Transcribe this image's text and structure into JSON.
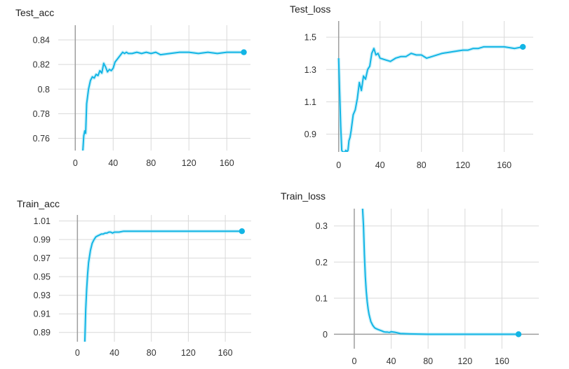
{
  "colors": {
    "line": "#12b5e5",
    "band": "#9be3f5",
    "grid": "#d9d9d9",
    "zero_axis": "#9e9e9e"
  },
  "chart_data": [
    {
      "type": "line",
      "title": "Test_acc",
      "xlim": [
        -18,
        185
      ],
      "ylim": [
        0.75,
        0.852
      ],
      "xticks": [
        0,
        40,
        80,
        120,
        160
      ],
      "yticks": [
        0.76,
        0.78,
        0.8,
        0.82,
        0.84
      ],
      "ytick_labels": [
        "0.76",
        "0.78",
        "0.8",
        "0.82",
        "0.84"
      ],
      "grid": true,
      "legend": "none",
      "series": [
        {
          "x": [
            8,
            9,
            10,
            11,
            12,
            14,
            16,
            18,
            20,
            22,
            24,
            26,
            28,
            30,
            32,
            34,
            36,
            38,
            40,
            42,
            44,
            46,
            48,
            50,
            52,
            54,
            56,
            60,
            65,
            70,
            75,
            80,
            85,
            90,
            100,
            110,
            120,
            130,
            140,
            150,
            160,
            170,
            178
          ],
          "y": [
            0.75,
            0.762,
            0.766,
            0.764,
            0.788,
            0.8,
            0.807,
            0.81,
            0.809,
            0.812,
            0.811,
            0.815,
            0.813,
            0.821,
            0.818,
            0.814,
            0.816,
            0.815,
            0.817,
            0.822,
            0.824,
            0.826,
            0.828,
            0.83,
            0.829,
            0.83,
            0.829,
            0.829,
            0.83,
            0.829,
            0.83,
            0.829,
            0.83,
            0.828,
            0.829,
            0.83,
            0.83,
            0.829,
            0.83,
            0.829,
            0.83,
            0.83,
            0.83
          ]
        }
      ]
    },
    {
      "type": "line",
      "title": "Test_loss",
      "xlim": [
        -12,
        188
      ],
      "ylim": [
        0.79,
        1.6
      ],
      "xticks": [
        0,
        40,
        80,
        120,
        160
      ],
      "yticks": [
        0.9,
        1.1,
        1.3,
        1.5
      ],
      "ytick_labels": [
        "0.9",
        "1.1",
        "1.3",
        "1.5"
      ],
      "grid": true,
      "legend": "none",
      "series": [
        {
          "x": [
            0,
            1,
            2,
            3,
            4,
            5,
            6,
            7,
            8,
            9,
            10,
            11,
            12,
            14,
            16,
            18,
            20,
            22,
            24,
            26,
            28,
            30,
            32,
            34,
            36,
            38,
            40,
            45,
            50,
            55,
            60,
            65,
            70,
            75,
            80,
            85,
            90,
            100,
            110,
            120,
            125,
            130,
            135,
            140,
            150,
            160,
            170,
            178
          ],
          "y": [
            1.37,
            1.15,
            0.95,
            0.8,
            0.79,
            0.79,
            0.79,
            0.8,
            0.79,
            0.8,
            0.86,
            0.88,
            0.92,
            1.02,
            1.05,
            1.12,
            1.22,
            1.17,
            1.26,
            1.24,
            1.3,
            1.32,
            1.4,
            1.43,
            1.39,
            1.4,
            1.37,
            1.36,
            1.35,
            1.37,
            1.38,
            1.38,
            1.4,
            1.39,
            1.39,
            1.37,
            1.38,
            1.4,
            1.41,
            1.42,
            1.42,
            1.43,
            1.43,
            1.44,
            1.44,
            1.44,
            1.43,
            1.44
          ]
        }
      ]
    },
    {
      "type": "line",
      "title": "Train_acc",
      "xlim": [
        -20,
        188
      ],
      "ylim": [
        0.88,
        1.0165
      ],
      "xticks": [
        0,
        40,
        80,
        120,
        160
      ],
      "yticks": [
        0.89,
        0.91,
        0.93,
        0.95,
        0.97,
        0.99,
        1.01
      ],
      "ytick_labels": [
        "0.89",
        "0.91",
        "0.93",
        "0.95",
        "0.97",
        "0.99",
        "1.01"
      ],
      "grid": true,
      "legend": "none",
      "series": [
        {
          "x": [
            8,
            9,
            10,
            11,
            12,
            14,
            16,
            18,
            20,
            22,
            24,
            26,
            28,
            30,
            32,
            34,
            36,
            38,
            40,
            45,
            50,
            60,
            70,
            80,
            100,
            120,
            140,
            160,
            178
          ],
          "y": [
            0.88,
            0.915,
            0.936,
            0.952,
            0.965,
            0.978,
            0.986,
            0.99,
            0.993,
            0.994,
            0.995,
            0.996,
            0.996,
            0.997,
            0.997,
            0.998,
            0.998,
            0.997,
            0.998,
            0.998,
            0.999,
            0.999,
            0.999,
            0.999,
            0.999,
            0.999,
            0.999,
            0.999,
            0.999
          ]
        }
      ]
    },
    {
      "type": "line",
      "title": "Train_loss",
      "xlim": [
        -22,
        200
      ],
      "ylim": [
        -0.04,
        0.348
      ],
      "xticks": [
        0,
        40,
        80,
        120,
        160
      ],
      "yticks": [
        0,
        0.1,
        0.2,
        0.3
      ],
      "ytick_labels": [
        "0",
        "0.1",
        "0.2",
        "0.3"
      ],
      "grid": true,
      "legend": "none",
      "series": [
        {
          "x": [
            9,
            10,
            11,
            12,
            13,
            14,
            15,
            16,
            17,
            18,
            20,
            22,
            24,
            26,
            28,
            30,
            32,
            34,
            36,
            38,
            40,
            45,
            50,
            60,
            80,
            100,
            120,
            140,
            160,
            178
          ],
          "y": [
            0.348,
            0.3,
            0.22,
            0.16,
            0.12,
            0.09,
            0.07,
            0.055,
            0.045,
            0.035,
            0.025,
            0.018,
            0.015,
            0.013,
            0.011,
            0.009,
            0.007,
            0.006,
            0.006,
            0.005,
            0.007,
            0.005,
            0.002,
            0.001,
            0.0,
            0.0,
            0.0,
            0.0,
            0.0,
            0.0
          ]
        }
      ]
    }
  ]
}
